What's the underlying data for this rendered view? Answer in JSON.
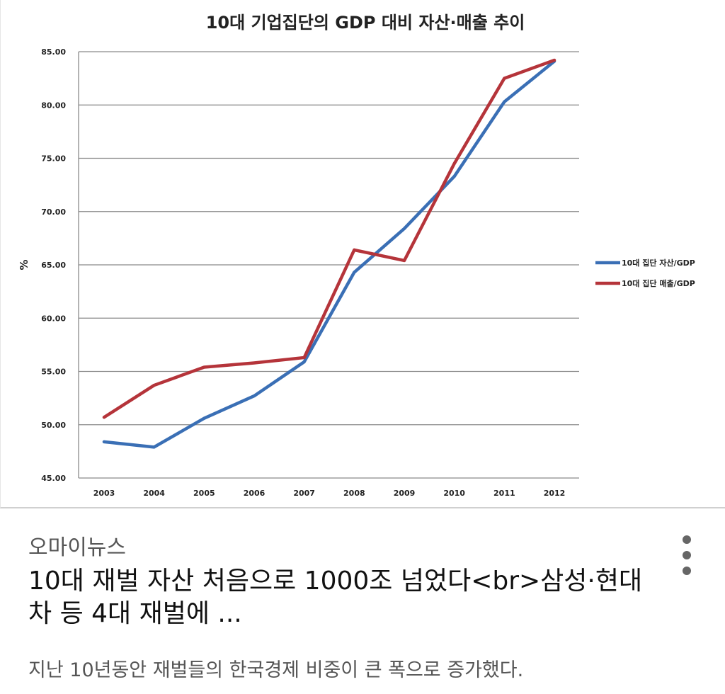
{
  "chart_data": {
    "type": "line",
    "title": "10대 기업집단의 GDP 대비 자산·매출 추이",
    "xlabel": "",
    "ylabel": "%",
    "categories": [
      "2003",
      "2004",
      "2005",
      "2006",
      "2007",
      "2008",
      "2009",
      "2010",
      "2011",
      "2012"
    ],
    "ylim": [
      45,
      85
    ],
    "yticks": [
      "45.00",
      "50.00",
      "55.00",
      "60.00",
      "65.00",
      "70.00",
      "75.00",
      "80.00",
      "85.00"
    ],
    "grid": true,
    "legend_position": "right",
    "series": [
      {
        "name": "10대 집단 자산/GDP",
        "color": "#3a6fb5",
        "values": [
          48.4,
          47.9,
          50.6,
          52.7,
          55.9,
          64.3,
          68.4,
          73.3,
          80.3,
          84.1
        ]
      },
      {
        "name": "10대 집단 매출/GDP",
        "color": "#b5343a",
        "values": [
          50.7,
          53.7,
          55.4,
          55.8,
          56.3,
          66.4,
          65.4,
          74.5,
          82.5,
          84.2
        ]
      }
    ]
  },
  "article": {
    "source": "오마이뉴스",
    "headline": "10대 재벌 자산 처음으로 1000조 넘었다<br>삼성·현대차 등 4대 재벌에 ...",
    "snippet": "지난 10년동안 재벌들의 한국경제 비중이 큰 폭으로 증가했다."
  },
  "more_menu_icon": "more-vert-icon"
}
